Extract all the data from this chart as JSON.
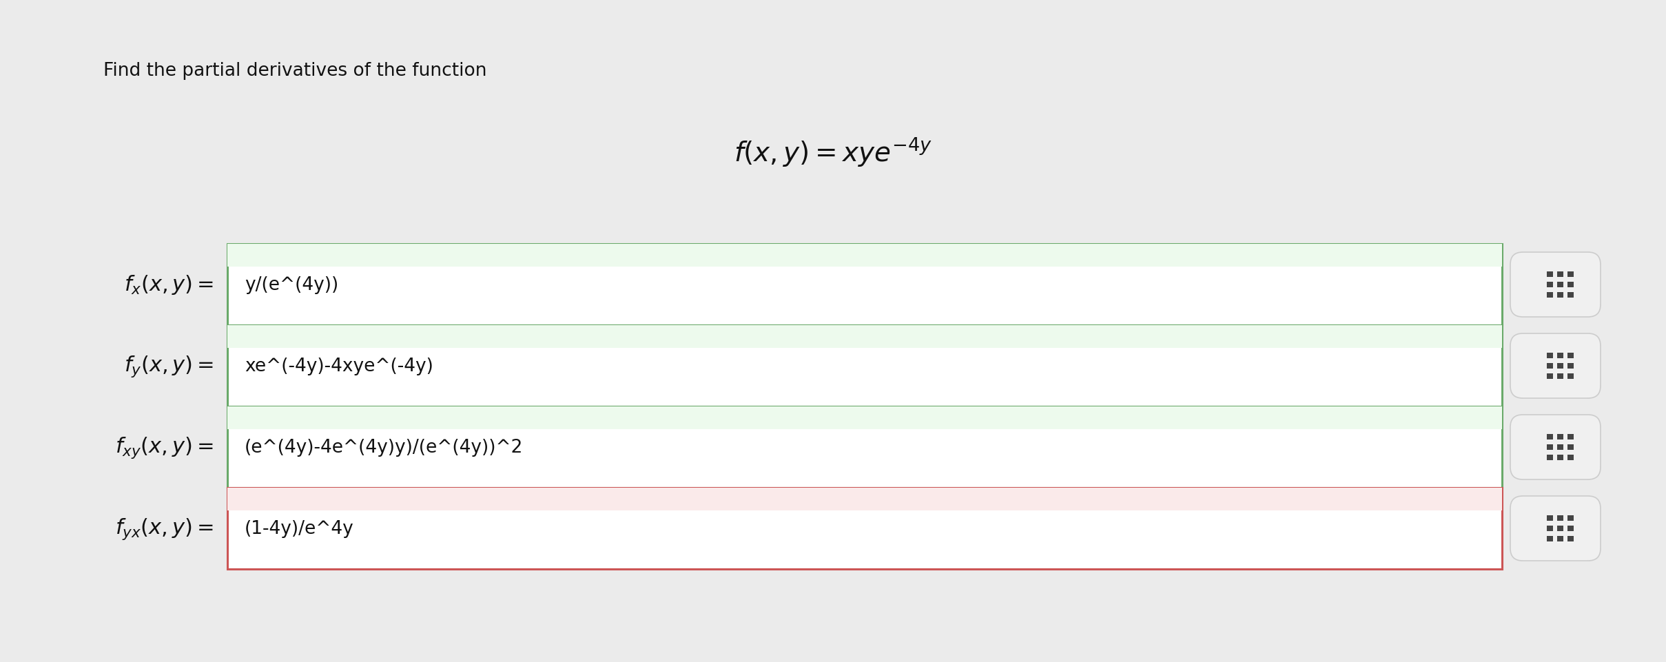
{
  "background_color": "#ebebeb",
  "title_text": "Find the partial derivatives of the function",
  "title_fontsize": 19,
  "function_latex": "$f(x, y) = xye^{-4y}$",
  "function_fontsize": 28,
  "rows": [
    {
      "label_latex": "$f_x(x, y) =$",
      "answer_text": "y/(e^(4y))",
      "border_color": "#6aaa6a",
      "bg_tint": "#edfaed"
    },
    {
      "label_latex": "$f_y(x, y) =$",
      "answer_text": "xe^(-4y)-4xye^(-4y)",
      "border_color": "#6aaa6a",
      "bg_tint": "#edfaed"
    },
    {
      "label_latex": "$f_{xy}(x, y) =$",
      "answer_text": "(e^(4y)-4e^(4y)y)/(e^(4y))^2",
      "border_color": "#6aaa6a",
      "bg_tint": "#edfaed"
    },
    {
      "label_latex": "$f_{yx}(x, y) =$",
      "answer_text": "(1-4y)/e^4y",
      "border_color": "#cc5555",
      "bg_tint": "#faeaea"
    }
  ],
  "answer_fontsize": 19,
  "label_fontsize": 22
}
